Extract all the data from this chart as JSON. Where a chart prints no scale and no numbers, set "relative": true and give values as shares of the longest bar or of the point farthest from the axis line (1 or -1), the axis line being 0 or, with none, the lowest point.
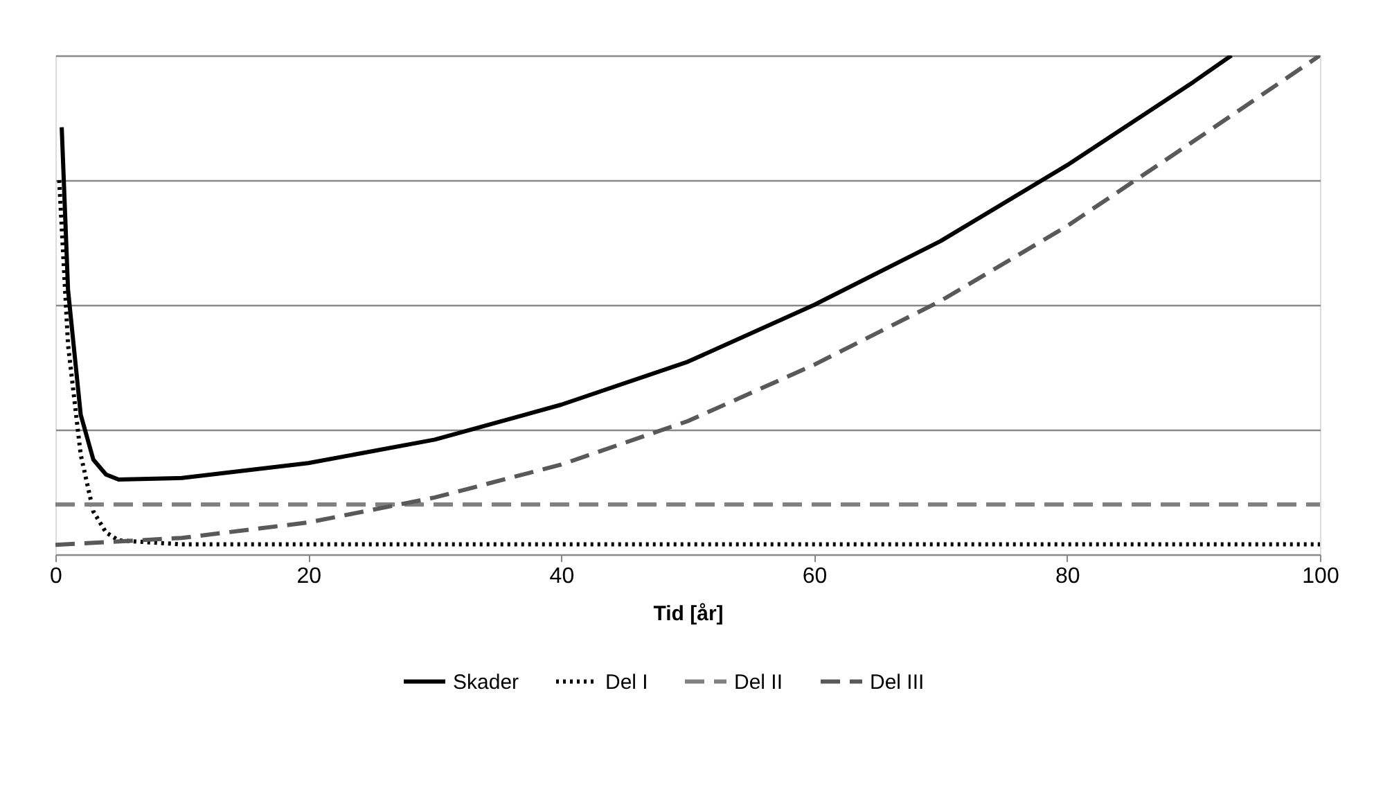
{
  "chart_data": {
    "type": "line",
    "relative": true,
    "xlabel": "Tid [år]",
    "xlim": [
      0,
      100
    ],
    "xticks": [
      0,
      20,
      40,
      60,
      80,
      100
    ],
    "grid": "y",
    "legend": "bottom",
    "tick_labels": "x",
    "series": [
      {
        "name": "Skader",
        "color": "#000000",
        "line_style": "solid",
        "x": [
          0.5,
          1,
          2,
          3,
          4,
          5,
          10,
          20,
          30,
          40,
          50,
          60,
          70,
          80,
          90,
          93
        ],
        "values": [
          0.856,
          0.53,
          0.28,
          0.19,
          0.16,
          0.15,
          0.153,
          0.183,
          0.23,
          0.3,
          0.386,
          0.5,
          0.628,
          0.78,
          0.947,
          1
        ]
      },
      {
        "name": "Del I",
        "color": "#000000",
        "line_style": "dotted",
        "x": [
          0.3,
          1,
          2,
          3,
          4,
          5,
          10,
          100
        ],
        "values": [
          0.75,
          0.42,
          0.2,
          0.086,
          0.044,
          0.028,
          0.02,
          0.02
        ]
      },
      {
        "name": "Del II",
        "color": "#808080",
        "line_style": "dashed",
        "x": [
          0,
          100
        ],
        "values": [
          0.1,
          0.1
        ]
      },
      {
        "name": "Del III",
        "color": "#595959",
        "line_style": "dashed",
        "x": [
          0,
          10,
          20,
          30,
          40,
          50,
          60,
          70,
          80,
          90,
          100
        ],
        "values": [
          0.019,
          0.033,
          0.064,
          0.114,
          0.18,
          0.267,
          0.38,
          0.508,
          0.658,
          0.828,
          1
        ]
      }
    ]
  }
}
